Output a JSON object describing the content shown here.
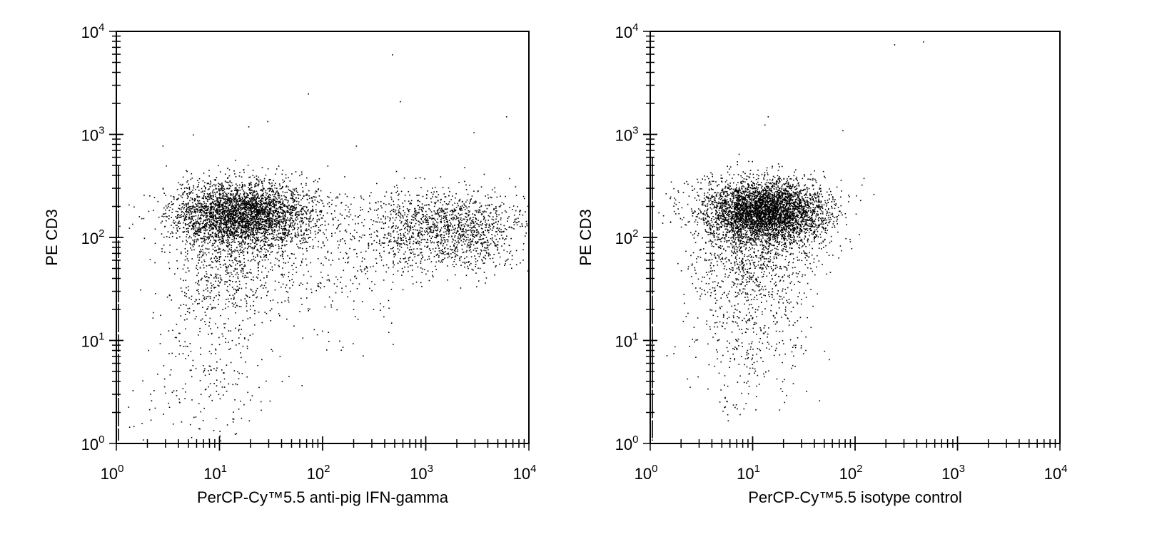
{
  "chart_data": [
    {
      "type": "scatter",
      "xscale": "log",
      "yscale": "log",
      "xlim": [
        1,
        10000
      ],
      "ylim": [
        1,
        10000
      ],
      "xlabel": "PerCP-Cy™5.5  anti-pig IFN-gamma",
      "ylabel": "PE CD3",
      "x_ticks": [
        {
          "base": "10",
          "exp": "0",
          "value": 1
        },
        {
          "base": "10",
          "exp": "1",
          "value": 10
        },
        {
          "base": "10",
          "exp": "2",
          "value": 100
        },
        {
          "base": "10",
          "exp": "3",
          "value": 1000
        },
        {
          "base": "10",
          "exp": "4",
          "value": 10000
        }
      ],
      "y_ticks": [
        {
          "base": "10",
          "exp": "0",
          "value": 1
        },
        {
          "base": "10",
          "exp": "1",
          "value": 10
        },
        {
          "base": "10",
          "exp": "2",
          "value": 100
        },
        {
          "base": "10",
          "exp": "3",
          "value": 1000
        },
        {
          "base": "10",
          "exp": "4",
          "value": 10000
        }
      ],
      "point_color": "#000000",
      "grid": false,
      "populations": [
        {
          "x_center": 17,
          "y_center": 170,
          "x_spread_log": 0.33,
          "y_spread_log": 0.16,
          "count": 3400
        },
        {
          "x_center": 1600,
          "y_center": 120,
          "x_spread_log": 0.42,
          "y_spread_log": 0.19,
          "count": 1500
        },
        {
          "x_center": 12,
          "y_center": 60,
          "x_spread_log": 0.3,
          "y_spread_log": 0.3,
          "count": 700
        },
        {
          "x_center": 8,
          "y_center": 6,
          "x_spread_log": 0.32,
          "y_spread_log": 0.4,
          "count": 260
        },
        {
          "x_center": 120,
          "y_center": 60,
          "x_spread_log": 0.45,
          "y_spread_log": 0.35,
          "count": 350
        }
      ],
      "outliers": [
        [
          470,
          6000
        ],
        [
          560,
          2100
        ],
        [
          72,
          2500
        ],
        [
          6000,
          1500
        ],
        [
          2900,
          1050
        ],
        [
          19,
          1200
        ],
        [
          29,
          1350
        ],
        [
          5.5,
          1000
        ],
        [
          2.8,
          780
        ],
        [
          210,
          780
        ]
      ],
      "axis_pileup": {
        "x": 1.05,
        "y_range": [
          1,
          500
        ]
      }
    },
    {
      "type": "scatter",
      "xscale": "log",
      "yscale": "log",
      "xlim": [
        1,
        10000
      ],
      "ylim": [
        1,
        10000
      ],
      "xlabel": "PerCP-Cy™5.5 isotype control",
      "ylabel": "PE CD3",
      "x_ticks": [
        {
          "base": "10",
          "exp": "0",
          "value": 1
        },
        {
          "base": "10",
          "exp": "1",
          "value": 10
        },
        {
          "base": "10",
          "exp": "2",
          "value": 100
        },
        {
          "base": "10",
          "exp": "3",
          "value": 1000
        },
        {
          "base": "10",
          "exp": "4",
          "value": 10000
        }
      ],
      "y_ticks": [
        {
          "base": "10",
          "exp": "0",
          "value": 1
        },
        {
          "base": "10",
          "exp": "1",
          "value": 10
        },
        {
          "base": "10",
          "exp": "2",
          "value": 100
        },
        {
          "base": "10",
          "exp": "3",
          "value": 1000
        },
        {
          "base": "10",
          "exp": "4",
          "value": 10000
        }
      ],
      "point_color": "#000000",
      "grid": false,
      "populations": [
        {
          "x_center": 13,
          "y_center": 180,
          "x_spread_log": 0.3,
          "y_spread_log": 0.15,
          "count": 4200
        },
        {
          "x_center": 10,
          "y_center": 60,
          "x_spread_log": 0.28,
          "y_spread_log": 0.3,
          "count": 900
        },
        {
          "x_center": 9,
          "y_center": 9,
          "x_spread_log": 0.3,
          "y_spread_log": 0.35,
          "count": 260
        }
      ],
      "outliers": [
        [
          240,
          7500
        ],
        [
          460,
          8000
        ],
        [
          14,
          1500
        ],
        [
          75,
          1100
        ],
        [
          13,
          1250
        ]
      ],
      "axis_pileup": {
        "x": 1.05,
        "y_range": [
          1,
          600
        ]
      }
    }
  ]
}
